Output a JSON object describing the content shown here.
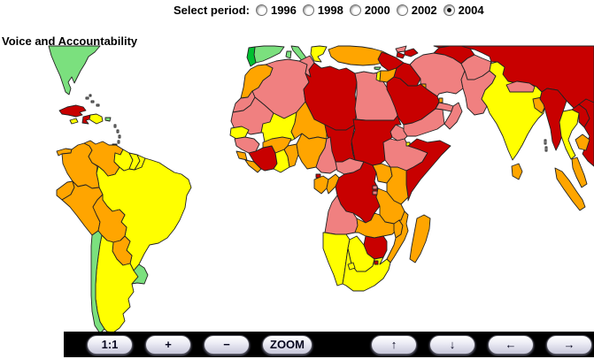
{
  "title": "Voice and Accountability",
  "period_selector": {
    "label": "Select period:",
    "options": [
      {
        "label": "1996",
        "selected": false
      },
      {
        "label": "1998",
        "selected": false
      },
      {
        "label": "2000",
        "selected": false
      },
      {
        "label": "2002",
        "selected": false
      },
      {
        "label": "2004",
        "selected": true
      }
    ]
  },
  "toolbar": {
    "buttons": [
      {
        "id": "actual-size",
        "label": "1:1",
        "group": "zoom"
      },
      {
        "id": "zoom-in",
        "label": "+",
        "group": "zoom"
      },
      {
        "id": "zoom-out",
        "label": "−",
        "group": "zoom"
      },
      {
        "id": "zoom-mode",
        "label": "ZOOM",
        "group": "zoom"
      },
      {
        "id": "pan-up",
        "label": "↑",
        "group": "pan"
      },
      {
        "id": "pan-down",
        "label": "↓",
        "group": "pan"
      },
      {
        "id": "pan-left",
        "label": "←",
        "group": "pan"
      },
      {
        "id": "pan-right",
        "label": "→",
        "group": "pan"
      }
    ]
  },
  "map": {
    "palette": {
      "dark_green": "#00C030",
      "light_green": "#7BE07E",
      "yellow": "#FFFF00",
      "orange": "#FFA500",
      "light_red": "#F08080",
      "dark_red": "#C80000",
      "no_data_grey": "#AFAFAF",
      "border": "#222222",
      "ocean": "#FFFFFF"
    },
    "regions": {
      "usa": "light_green",
      "bahamas": "no_data_grey",
      "cuba": "dark_red",
      "jamaica": "yellow",
      "haiti": "dark_red",
      "dominican-republic": "yellow",
      "puerto-rico": "light_green",
      "lesser-antilles": "no_data_grey",
      "trinidad": "dark_green",
      "panama": "orange",
      "colombia": "orange",
      "venezuela": "orange",
      "guyana": "yellow",
      "suriname": "yellow",
      "french-guiana": "yellow",
      "ecuador": "orange",
      "peru": "orange",
      "brazil": "yellow",
      "bolivia": "orange",
      "paraguay": "orange",
      "chile": "light_green",
      "argentina": "yellow",
      "uruguay": "light_green",
      "portugal": "dark_green",
      "spain": "light_green",
      "italy": "light_green",
      "greece": "yellow",
      "turkey": "orange",
      "cyprus": "light_green",
      "georgia": "light_red",
      "azerbaijan": "dark_red",
      "armenia": "dark_red",
      "morocco": "orange",
      "western-sahara": "light_red",
      "algeria": "light_red",
      "tunisia": "light_red",
      "libya": "dark_red",
      "egypt": "light_red",
      "mauritania": "light_red",
      "mali": "yellow",
      "senegal": "yellow",
      "guinea": "light_red",
      "sierra-leone": "orange",
      "liberia": "orange",
      "ivory-coast": "dark_red",
      "ghana": "yellow",
      "togo-benin": "orange",
      "burkina-faso": "orange",
      "niger": "orange",
      "nigeria": "orange",
      "chad": "dark_red",
      "sudan": "dark_red",
      "eritrea": "light_red",
      "djibouti": "yellow",
      "ethiopia": "light_red",
      "somalia": "dark_red",
      "cameroon": "light_red",
      "central-african-republic": "light_red",
      "equatorial-guinea": "dark_red",
      "gabon": "orange",
      "congo": "orange",
      "dr-congo": "dark_red",
      "rwanda": "light_red",
      "burundi": "light_red",
      "uganda": "orange",
      "kenya": "orange",
      "tanzania": "orange",
      "angola": "light_red",
      "zambia": "orange",
      "malawi": "orange",
      "mozambique": "orange",
      "zimbabwe": "dark_red",
      "namibia": "yellow",
      "botswana": "yellow",
      "south-africa": "yellow",
      "lesotho": "yellow",
      "swaziland": "dark_red",
      "madagascar": "orange",
      "syria": "dark_red",
      "israel": "yellow",
      "jordan": "orange",
      "iraq": "dark_red",
      "kuwait": "orange",
      "saudi-arabia": "dark_red",
      "qatar": "orange",
      "uae": "light_red",
      "oman": "light_red",
      "yemen": "light_red",
      "iran": "light_red",
      "russia-china-central-asia": "dark_red",
      "turkmenistan": "dark_red",
      "afghanistan": "light_red",
      "pakistan": "light_red",
      "india": "yellow",
      "nepal": "light_red",
      "bangladesh": "orange",
      "sri-lanka": "orange",
      "myanmar": "dark_red",
      "thailand": "yellow",
      "laos": "dark_red",
      "vietnam": "dark_red",
      "cambodia": "orange",
      "malaysia": "orange",
      "sumatra": "orange",
      "andaman-islands": "no_data_grey"
    }
  }
}
